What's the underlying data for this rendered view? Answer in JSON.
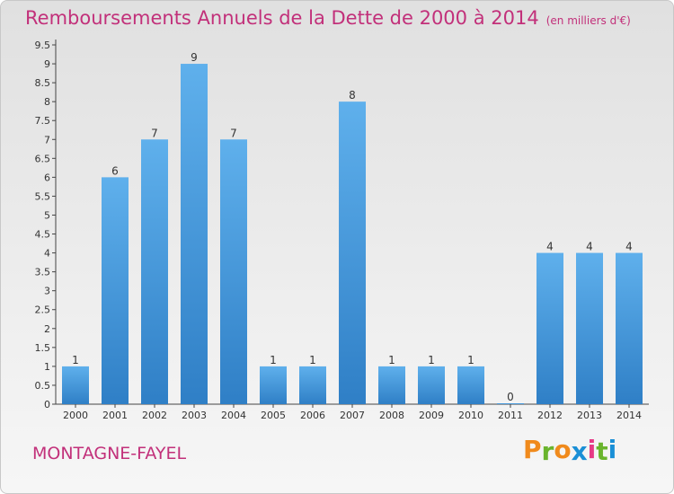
{
  "header": {
    "title": "Remboursements Annuels de la Dette de 2000 à 2014",
    "unit": "(en milliers d'€)"
  },
  "footer": {
    "commune": "MONTAGNE-FAYEL",
    "logo": "Proxiti"
  },
  "colors": {
    "title": "#c2307a",
    "bar_top": "#5fb0ec",
    "bar_bottom": "#2f7fc6",
    "logo_letters": [
      "#f08a1c",
      "#6ab42d",
      "#f08a1c",
      "#1a8fd6",
      "#e63a86",
      "#6ab42d",
      "#1a8fd6"
    ]
  },
  "chart_data": {
    "type": "bar",
    "title": "Remboursements Annuels de la Dette de 2000 à 2014",
    "categories": [
      "2000",
      "2001",
      "2002",
      "2003",
      "2004",
      "2005",
      "2006",
      "2007",
      "2008",
      "2009",
      "2010",
      "2011",
      "2012",
      "2013",
      "2014"
    ],
    "values": [
      1,
      6,
      7,
      9,
      7,
      1,
      1,
      8,
      1,
      1,
      1,
      0,
      4,
      4,
      4
    ],
    "data_labels": [
      "1",
      "6",
      "7",
      "9",
      "7",
      "1",
      "1",
      "8",
      "1",
      "1",
      "1",
      "0",
      "4",
      "4",
      "4"
    ],
    "y_ticks": [
      "0",
      "0.5",
      "1",
      "1.5",
      "2",
      "2.5",
      "3",
      "3.5",
      "4",
      "4.5",
      "5",
      "5.5",
      "6",
      "6.5",
      "7",
      "7.5",
      "8",
      "8.5",
      "9",
      "9.5"
    ],
    "ylim": [
      0,
      9.5
    ],
    "grid": false,
    "legend": "none"
  }
}
